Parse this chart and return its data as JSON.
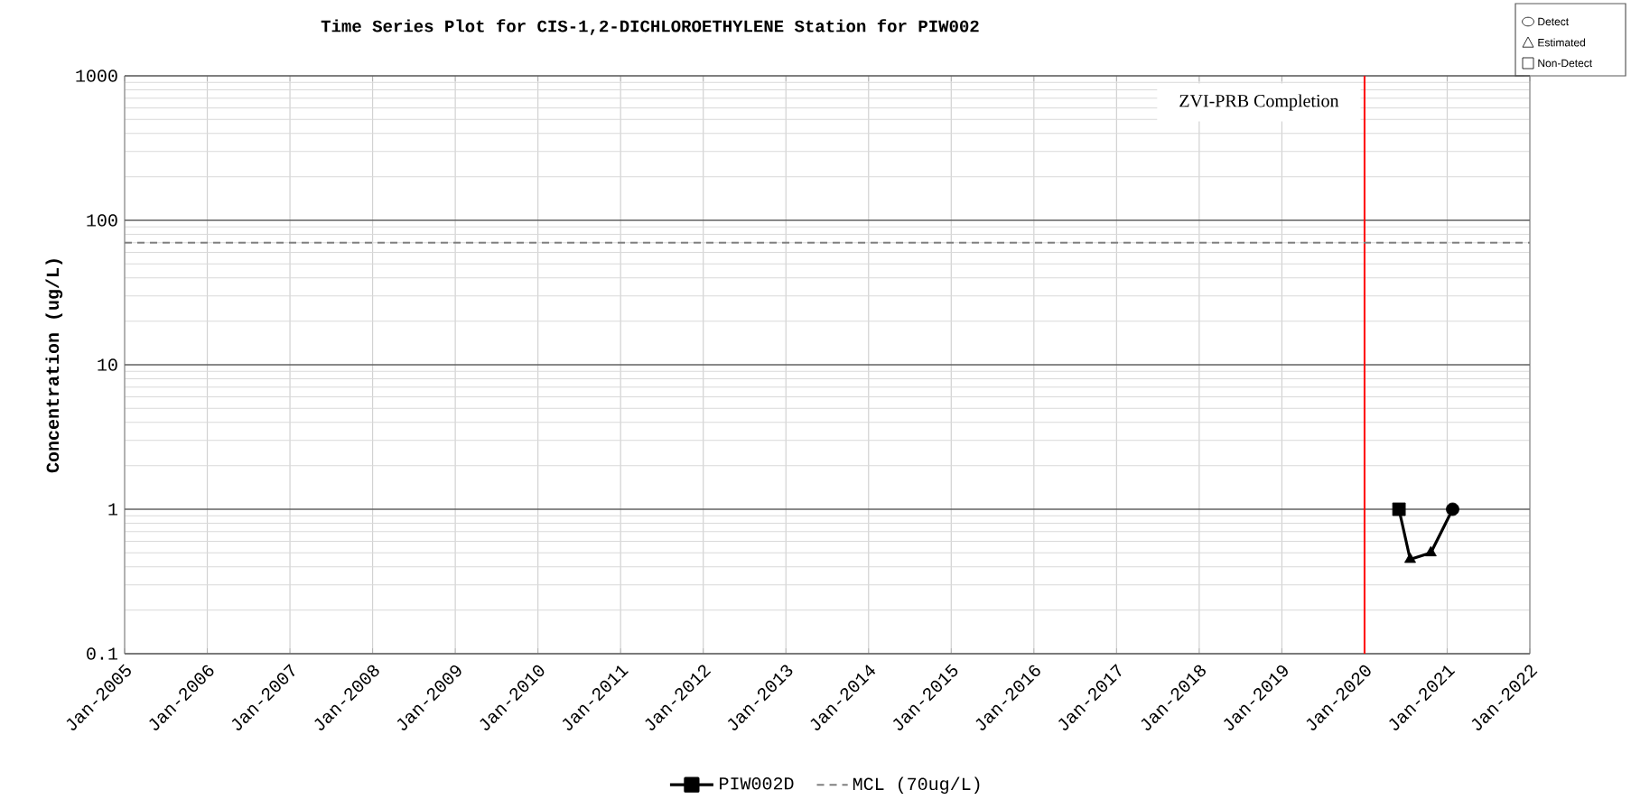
{
  "chart_data": {
    "type": "line",
    "title": "Time Series Plot for CIS-1,2-DICHLOROETHYLENE Station for PIW002",
    "ylabel": "Concentration (ug/L)",
    "log": "y",
    "grid": true,
    "legend": "bottom",
    "xlim": [
      "2005-01",
      "2022-01"
    ],
    "xticks": [
      {
        "value": "2005-01",
        "label": "Jan-2005"
      },
      {
        "value": "2006-01",
        "label": "Jan-2006"
      },
      {
        "value": "2007-01",
        "label": "Jan-2007"
      },
      {
        "value": "2008-01",
        "label": "Jan-2008"
      },
      {
        "value": "2009-01",
        "label": "Jan-2009"
      },
      {
        "value": "2010-01",
        "label": "Jan-2010"
      },
      {
        "value": "2011-01",
        "label": "Jan-2011"
      },
      {
        "value": "2012-01",
        "label": "Jan-2012"
      },
      {
        "value": "2013-01",
        "label": "Jan-2013"
      },
      {
        "value": "2014-01",
        "label": "Jan-2014"
      },
      {
        "value": "2015-01",
        "label": "Jan-2015"
      },
      {
        "value": "2016-01",
        "label": "Jan-2016"
      },
      {
        "value": "2017-01",
        "label": "Jan-2017"
      },
      {
        "value": "2018-01",
        "label": "Jan-2018"
      },
      {
        "value": "2019-01",
        "label": "Jan-2019"
      },
      {
        "value": "2020-01",
        "label": "Jan-2020"
      },
      {
        "value": "2021-01",
        "label": "Jan-2021"
      },
      {
        "value": "2022-01",
        "label": "Jan-2022"
      }
    ],
    "ylim": [
      0.1,
      1000
    ],
    "yticks": [
      0.1,
      1,
      10,
      100,
      1000
    ],
    "series": [
      {
        "name": "PIW002D",
        "color": "#000000",
        "marker": "none",
        "line_style": "solid",
        "x": [
          "2020-06-01",
          "2020-07-20",
          "2020-10-20",
          "2021-01-25"
        ],
        "values": [
          1,
          0.45,
          0.5,
          1
        ]
      },
      {
        "type": "scatter",
        "color": "#000000",
        "marker": "square",
        "x": [
          "2020-06-01"
        ],
        "values": [
          1
        ]
      },
      {
        "type": "scatter",
        "color": "#000000",
        "marker": "triangle",
        "x": [
          "2020-07-20",
          "2020-10-20"
        ],
        "values": [
          0.45,
          0.5
        ]
      },
      {
        "type": "scatter",
        "color": "#000000",
        "marker": "circle",
        "x": [
          "2021-01-25"
        ],
        "values": [
          1
        ]
      }
    ],
    "ref_lines": [
      {
        "axis": "x",
        "value": "2020-01",
        "label": "ZVI-PRB Completion",
        "color": "#ff0000",
        "line_style": "solid"
      },
      {
        "axis": "y",
        "value": 70,
        "label": "MCL (70ug/L)",
        "color": "#808080",
        "line_style": "dashed"
      }
    ],
    "annotations": [
      "Detect",
      "Estimated",
      "Non-Detect"
    ]
  }
}
